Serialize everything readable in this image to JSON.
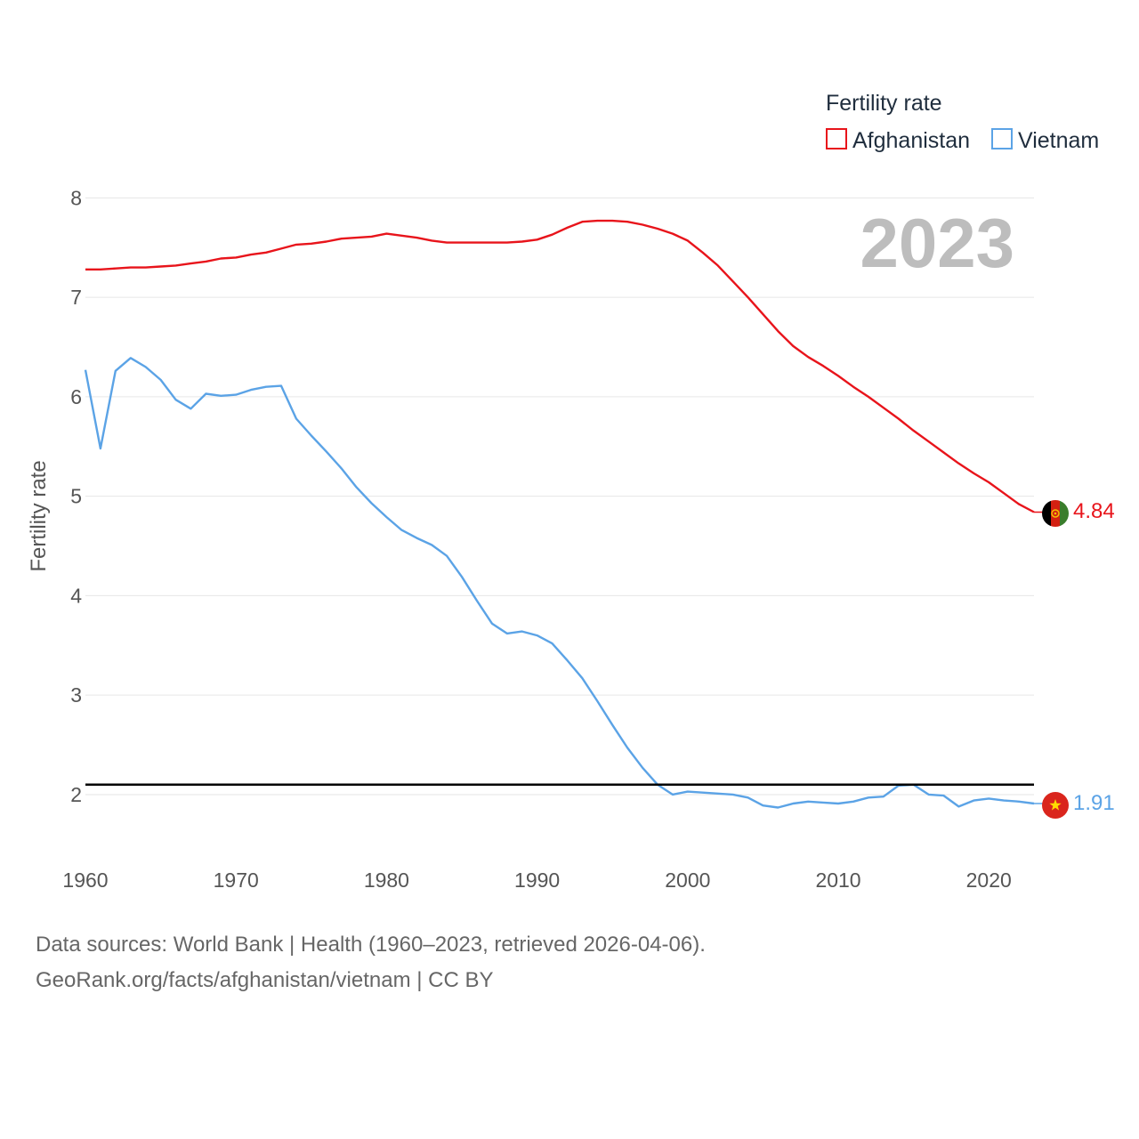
{
  "chart_data": {
    "type": "line",
    "year_label": "2023",
    "ylabel": "Fertility rate",
    "xlim": [
      1960,
      2023
    ],
    "ylim": [
      1.4,
      8.2
    ],
    "x_ticks": [
      "1960",
      "1970",
      "1980",
      "1990",
      "2000",
      "2010",
      "2020"
    ],
    "y_ticks": [
      "2",
      "3",
      "4",
      "5",
      "6",
      "7",
      "8"
    ],
    "reference_line": 2.1,
    "legend": {
      "title": "Fertility rate",
      "position": "top-right"
    },
    "x": [
      1960,
      1961,
      1962,
      1963,
      1964,
      1965,
      1966,
      1967,
      1968,
      1969,
      1970,
      1971,
      1972,
      1973,
      1974,
      1975,
      1976,
      1977,
      1978,
      1979,
      1980,
      1981,
      1982,
      1983,
      1984,
      1985,
      1986,
      1987,
      1988,
      1989,
      1990,
      1991,
      1992,
      1993,
      1994,
      1995,
      1996,
      1997,
      1998,
      1999,
      2000,
      2001,
      2002,
      2003,
      2004,
      2005,
      2006,
      2007,
      2008,
      2009,
      2010,
      2011,
      2012,
      2013,
      2014,
      2015,
      2016,
      2017,
      2018,
      2019,
      2020,
      2021,
      2022,
      2023
    ],
    "series": [
      {
        "name": "Afghanistan",
        "color": "#e8141b",
        "end_label": "4.84",
        "values": [
          7.28,
          7.28,
          7.29,
          7.3,
          7.3,
          7.31,
          7.32,
          7.34,
          7.36,
          7.39,
          7.4,
          7.43,
          7.45,
          7.49,
          7.53,
          7.54,
          7.56,
          7.59,
          7.6,
          7.61,
          7.64,
          7.62,
          7.6,
          7.57,
          7.55,
          7.55,
          7.55,
          7.55,
          7.55,
          7.56,
          7.58,
          7.63,
          7.7,
          7.76,
          7.77,
          7.77,
          7.76,
          7.73,
          7.69,
          7.64,
          7.57,
          7.45,
          7.32,
          7.16,
          7.0,
          6.83,
          6.66,
          6.51,
          6.4,
          6.31,
          6.21,
          6.1,
          6.0,
          5.89,
          5.78,
          5.66,
          5.55,
          5.44,
          5.33,
          5.23,
          5.14,
          5.03,
          4.92,
          4.84
        ]
      },
      {
        "name": "Vietnam",
        "color": "#5ba3e6",
        "end_label": "1.91",
        "values": [
          6.27,
          5.48,
          6.26,
          6.39,
          6.3,
          6.17,
          5.97,
          5.88,
          6.03,
          6.01,
          6.02,
          6.07,
          6.1,
          6.11,
          5.78,
          5.61,
          5.45,
          5.28,
          5.09,
          4.93,
          4.79,
          4.66,
          4.58,
          4.51,
          4.4,
          4.19,
          3.95,
          3.72,
          3.62,
          3.64,
          3.6,
          3.52,
          3.35,
          3.17,
          2.94,
          2.7,
          2.47,
          2.27,
          2.1,
          2.0,
          2.03,
          2.02,
          2.01,
          2.0,
          1.97,
          1.89,
          1.87,
          1.91,
          1.93,
          1.92,
          1.91,
          1.93,
          1.97,
          1.98,
          2.09,
          2.1,
          2.0,
          1.99,
          1.88,
          1.94,
          1.96,
          1.94,
          1.93,
          1.91
        ]
      }
    ]
  },
  "source": {
    "line1": "Data sources: World Bank | Health (1960–2023, retrieved 2026-04-06).",
    "line2": "GeoRank.org/facts/afghanistan/vietnam | CC BY"
  }
}
